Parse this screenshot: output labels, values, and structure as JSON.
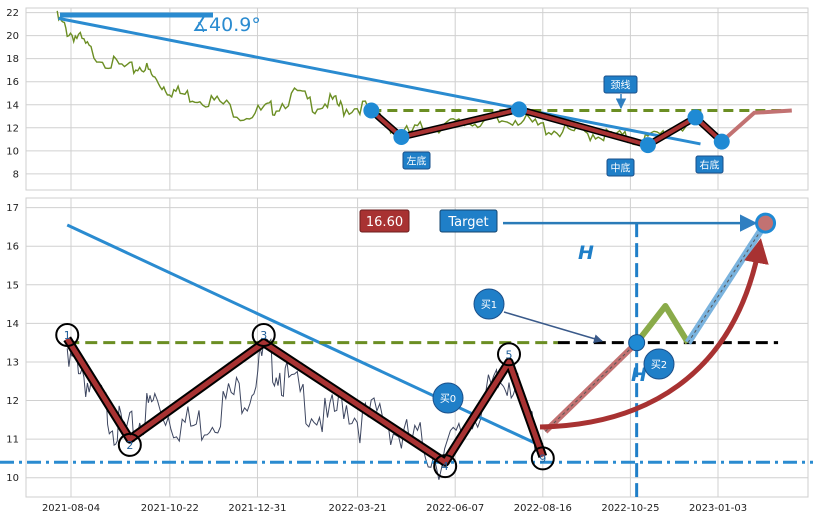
{
  "chart_data": [
    {
      "type": "line",
      "panel": "top",
      "yticks": [
        8,
        10,
        12,
        14,
        16,
        18,
        20,
        22
      ],
      "ylim": [
        6.6,
        22.4
      ],
      "angle_label": "∡40.9°",
      "neckline_label": "颈线",
      "trough_labels": [
        "左底",
        "中底",
        "右底"
      ],
      "trendline": [
        [
          "2021-07-25",
          21.5
        ],
        [
          "2022-12-20",
          10.6
        ]
      ],
      "neckline": {
        "y": 13.5,
        "x_start": "2022-04-01",
        "x_end": "2023-03-01"
      },
      "zigzag": [
        [
          "2022-04-01",
          13.5
        ],
        [
          "2022-04-25",
          11.2
        ],
        [
          "2022-07-28",
          13.6
        ],
        [
          "2022-11-08",
          10.5
        ],
        [
          "2022-12-16",
          12.9
        ],
        [
          "2023-01-06",
          10.8
        ]
      ],
      "projection": [
        [
          "2023-01-06",
          10.8
        ],
        [
          "2023-02-01",
          13.3
        ],
        [
          "2023-03-03",
          13.5
        ]
      ],
      "series": [
        {
          "values": [
            [
              "2021-07-24",
              21.5
            ],
            [
              "2021-08-01",
              20.4
            ],
            [
              "2021-08-10",
              19.8
            ],
            [
              "2021-08-20",
              18.6
            ],
            [
              "2021-09-05",
              17.6
            ],
            [
              "2021-09-20",
              17.0
            ],
            [
              "2021-10-01",
              17.4
            ],
            [
              "2021-10-10",
              16.2
            ],
            [
              "2021-10-20",
              15.4
            ],
            [
              "2021-11-01",
              14.9
            ],
            [
              "2021-11-15",
              14.6
            ],
            [
              "2021-12-01",
              14.2
            ],
            [
              "2021-12-20",
              13.1
            ],
            [
              "2022-01-05",
              13.5
            ],
            [
              "2022-01-15",
              13.8
            ],
            [
              "2022-02-01",
              15.0
            ],
            [
              "2022-02-15",
              13.9
            ],
            [
              "2022-03-01",
              14.3
            ],
            [
              "2022-03-10",
              13.6
            ],
            [
              "2022-03-25",
              13.9
            ],
            [
              "2022-04-10",
              12.8
            ],
            [
              "2022-04-25",
              11.4
            ],
            [
              "2022-05-10",
              11.9
            ],
            [
              "2022-05-25",
              12.2
            ],
            [
              "2022-06-10",
              12.3
            ],
            [
              "2022-06-25",
              12.6
            ],
            [
              "2022-07-10",
              12.4
            ],
            [
              "2022-07-25",
              12.9
            ],
            [
              "2022-08-10",
              12.2
            ],
            [
              "2022-08-25",
              11.8
            ],
            [
              "2022-09-10",
              11.6
            ],
            [
              "2022-09-25",
              11.5
            ],
            [
              "2022-10-10",
              11.3
            ],
            [
              "2022-10-25",
              11.0
            ],
            [
              "2022-11-08",
              11.0
            ],
            [
              "2022-11-25",
              11.7
            ],
            [
              "2022-12-10",
              12.4
            ]
          ]
        }
      ]
    },
    {
      "type": "line",
      "panel": "bottom",
      "x_ticks": [
        "2021-08-04",
        "2021-10-22",
        "2021-12-31",
        "2022-03-21",
        "2022-06-07",
        "2022-08-16",
        "2022-10-25",
        "2023-01-03"
      ],
      "yticks": [
        10,
        11,
        12,
        13,
        14,
        15,
        16,
        17
      ],
      "ylim": [
        9.5,
        17.25
      ],
      "target_price_label": "16.60",
      "target_label": "Target",
      "height_label": "H",
      "pivot_labels": [
        "1",
        "2",
        "3",
        "4",
        "5",
        "9"
      ],
      "buy_labels": [
        "买0",
        "买1",
        "买2"
      ],
      "pivots": [
        [
          "2021-08-01",
          13.7
        ],
        [
          "2021-09-20",
          10.85
        ],
        [
          "2022-01-05",
          13.7
        ],
        [
          "2022-05-30",
          10.3
        ],
        [
          "2022-07-20",
          13.2
        ],
        [
          "2022-08-16",
          10.5
        ]
      ],
      "zigzag": [
        [
          "2021-08-01",
          13.6
        ],
        [
          "2021-09-20",
          11.0
        ],
        [
          "2022-01-05",
          13.5
        ],
        [
          "2022-05-30",
          10.4
        ],
        [
          "2022-07-20",
          13.0
        ],
        [
          "2022-08-16",
          10.55
        ]
      ],
      "neckline": {
        "y": 13.5,
        "x_start": "2021-08-01",
        "x_end": "2023-02-20"
      },
      "support": 10.4,
      "trendline": [
        [
          "2021-08-01",
          16.55
        ],
        [
          "2022-08-13",
          10.85
        ]
      ],
      "target": 16.6,
      "target_date": "2023-02-10",
      "vline_date": "2022-10-30",
      "series": [
        {
          "values": [
            [
              "2021-08-01",
              12.8
            ],
            [
              "2021-08-10",
              13.1
            ],
            [
              "2021-08-20",
              12.2
            ],
            [
              "2021-09-01",
              11.8
            ],
            [
              "2021-09-10",
              11.3
            ],
            [
              "2021-09-20",
              11.1
            ],
            [
              "2021-10-01",
              11.6
            ],
            [
              "2021-10-10",
              12.0
            ],
            [
              "2021-10-25",
              11.5
            ],
            [
              "2021-11-10",
              11.3
            ],
            [
              "2021-11-25",
              11.6
            ],
            [
              "2021-12-10",
              12.1
            ],
            [
              "2021-12-25",
              12.3
            ],
            [
              "2022-01-05",
              13.2
            ],
            [
              "2022-01-15",
              12.9
            ],
            [
              "2022-01-25",
              12.4
            ],
            [
              "2022-02-10",
              11.9
            ],
            [
              "2022-02-25",
              11.4
            ],
            [
              "2022-03-10",
              12.0
            ],
            [
              "2022-03-25",
              11.4
            ],
            [
              "2022-04-10",
              11.7
            ],
            [
              "2022-04-25",
              11.0
            ],
            [
              "2022-05-10",
              10.9
            ],
            [
              "2022-05-25",
              10.5
            ],
            [
              "2022-06-10",
              11.0
            ],
            [
              "2022-06-25",
              11.8
            ],
            [
              "2022-07-10",
              12.3
            ],
            [
              "2022-07-20",
              12.7
            ],
            [
              "2022-08-01",
              11.7
            ],
            [
              "2022-08-16",
              10.9
            ]
          ]
        }
      ]
    }
  ]
}
